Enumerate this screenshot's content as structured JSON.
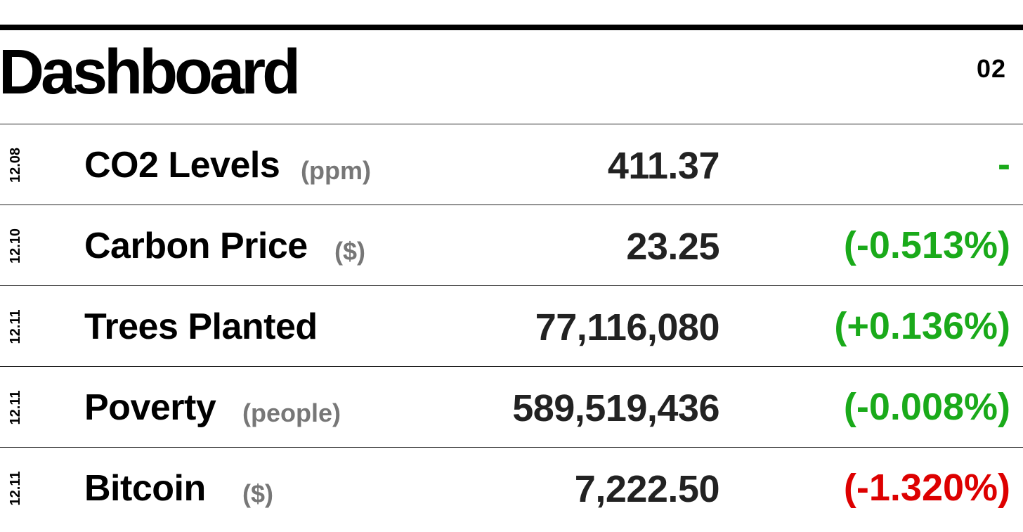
{
  "header": {
    "title": "Dashboard",
    "issue": "02"
  },
  "colors": {
    "positive": "#1aaa1a",
    "negative": "#dd0000",
    "unit": "#777777"
  },
  "rows": [
    {
      "date": "12.08",
      "label": "CO2 Levels",
      "unit": "(ppm)",
      "value": "411.37",
      "change": "-",
      "trend": "positive"
    },
    {
      "date": "12.10",
      "label": "Carbon Price",
      "unit": "($)",
      "value": "23.25",
      "change": "(-0.513%)",
      "trend": "positive"
    },
    {
      "date": "12.11",
      "label": "Trees Planted",
      "unit": "",
      "value": "77,116,080",
      "change": "(+0.136%)",
      "trend": "positive"
    },
    {
      "date": "12.11",
      "label": "Poverty",
      "unit": "(people)",
      "value": "589,519,436",
      "change": "(-0.008%)",
      "trend": "positive"
    },
    {
      "date": "12.11",
      "label": "Bitcoin",
      "unit": "($)",
      "value": "7,222.50",
      "change": "(-1.320%)",
      "trend": "negative"
    }
  ]
}
